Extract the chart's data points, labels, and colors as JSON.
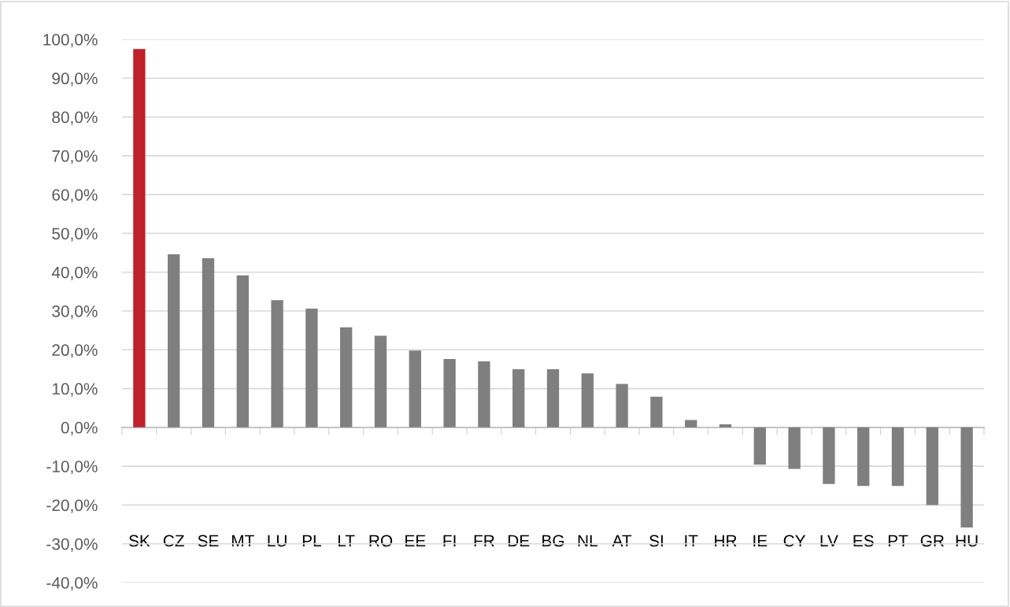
{
  "chart_data": {
    "type": "bar",
    "categories": [
      "SK",
      "CZ",
      "SE",
      "MT",
      "LU",
      "PL",
      "LT",
      "RO",
      "EE",
      "FI",
      "FR",
      "DE",
      "BG",
      "NL",
      "AT",
      "SI",
      "IT",
      "HR",
      "IE",
      "CY",
      "LV",
      "ES",
      "PT",
      "GR",
      "HU"
    ],
    "values": [
      97.5,
      44.6,
      43.6,
      39.2,
      32.8,
      30.6,
      25.8,
      23.6,
      19.8,
      17.6,
      17.0,
      15.0,
      15.0,
      13.9,
      11.2,
      7.9,
      1.9,
      0.8,
      -9.6,
      -10.7,
      -14.6,
      -15.1,
      -15.1,
      -20.0,
      -25.8
    ],
    "colors": [
      "#c0202a",
      "#7f7f7f",
      "#7f7f7f",
      "#7f7f7f",
      "#7f7f7f",
      "#7f7f7f",
      "#7f7f7f",
      "#7f7f7f",
      "#7f7f7f",
      "#7f7f7f",
      "#7f7f7f",
      "#7f7f7f",
      "#7f7f7f",
      "#7f7f7f",
      "#7f7f7f",
      "#7f7f7f",
      "#7f7f7f",
      "#7f7f7f",
      "#7f7f7f",
      "#7f7f7f",
      "#7f7f7f",
      "#7f7f7f",
      "#7f7f7f",
      "#7f7f7f",
      "#7f7f7f"
    ],
    "ylim": [
      -40,
      100
    ],
    "yticks": [
      {
        "value": -40,
        "label": "-40,0%"
      },
      {
        "value": -30,
        "label": "-30,0%"
      },
      {
        "value": -20,
        "label": "-20,0%"
      },
      {
        "value": -10,
        "label": "-10,0%"
      },
      {
        "value": 0,
        "label": "0,0%"
      },
      {
        "value": 10,
        "label": "10,0%"
      },
      {
        "value": 20,
        "label": "20,0%"
      },
      {
        "value": 30,
        "label": "30,0%"
      },
      {
        "value": 40,
        "label": "40,0%"
      },
      {
        "value": 50,
        "label": "50,0%"
      },
      {
        "value": 60,
        "label": "60,0%"
      },
      {
        "value": 70,
        "label": "70,0%"
      },
      {
        "value": 80,
        "label": "80,0%"
      },
      {
        "value": 90,
        "label": "90,0%"
      },
      {
        "value": 100,
        "label": "100,0%"
      }
    ],
    "grid": "y"
  }
}
